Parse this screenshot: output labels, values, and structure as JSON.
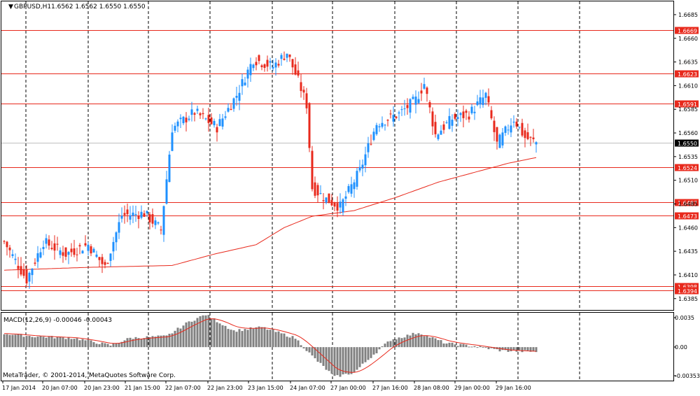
{
  "header": {
    "symbol_label": "GBPUSD,H1",
    "ohlc_label": "1.6562 1.6562 1.6550 1.6550"
  },
  "macd": {
    "label": "MACD(12,26,9) -0.00046 -0.00043",
    "ticks": [
      "0.0035",
      "0.00",
      "-0.00353"
    ],
    "range": [
      -0.0037,
      0.0038
    ]
  },
  "copyright": "MetaTrader, © 2001-2014, MetaQuotes Software Corp.",
  "colors": {
    "bull": "#1E90FF",
    "bear": "#E8291C",
    "level": "#E8291C",
    "ma": "#E8291C",
    "histogram": "#808080",
    "axis": "#000000",
    "grid": "#000000"
  },
  "chart_data": {
    "type": "candlestick",
    "symbol": "GBPUSD",
    "timeframe": "H1",
    "price_range": [
      1.6373,
      1.6699
    ],
    "price_ticks": [
      "1.6685",
      "1.6660",
      "1.6635",
      "1.6610",
      "1.6585",
      "1.6560",
      "1.6535",
      "1.6510",
      "1.6485",
      "1.6460",
      "1.6435",
      "1.6410",
      "1.6385"
    ],
    "time_labels": [
      "17 Jan 2014",
      "20 Jan 07:00",
      "20 Jan 23:00",
      "21 Jan 15:00",
      "22 Jan 07:00",
      "22 Jan 23:00",
      "23 Jan 15:00",
      "24 Jan 07:00",
      "27 Jan 00:00",
      "27 Jan 16:00",
      "28 Jan 08:00",
      "29 Jan 00:00",
      "29 Jan 16:00"
    ],
    "levels": [
      "1.6669",
      "1.6623",
      "1.6591",
      "1.6524",
      "1.6487",
      "1.6473",
      "1.6398",
      "1.6394"
    ],
    "current_price": "1.6550",
    "key_points": [
      {
        "bar": 0,
        "close": 1.6445
      },
      {
        "bar": 8,
        "close": 1.6405
      },
      {
        "bar": 14,
        "close": 1.6445
      },
      {
        "bar": 22,
        "close": 1.6432
      },
      {
        "bar": 30,
        "close": 1.6442
      },
      {
        "bar": 36,
        "close": 1.6418
      },
      {
        "bar": 42,
        "close": 1.6473
      },
      {
        "bar": 50,
        "close": 1.6475
      },
      {
        "bar": 56,
        "close": 1.6458
      },
      {
        "bar": 60,
        "close": 1.6565
      },
      {
        "bar": 68,
        "close": 1.6582
      },
      {
        "bar": 76,
        "close": 1.6566
      },
      {
        "bar": 83,
        "close": 1.66
      },
      {
        "bar": 89,
        "close": 1.6638
      },
      {
        "bar": 96,
        "close": 1.663
      },
      {
        "bar": 101,
        "close": 1.6645
      },
      {
        "bar": 105,
        "close": 1.6615
      },
      {
        "bar": 108,
        "close": 1.659
      },
      {
        "bar": 110,
        "close": 1.6502
      },
      {
        "bar": 115,
        "close": 1.649
      },
      {
        "bar": 120,
        "close": 1.6482
      },
      {
        "bar": 127,
        "close": 1.652
      },
      {
        "bar": 133,
        "close": 1.657
      },
      {
        "bar": 141,
        "close": 1.658
      },
      {
        "bar": 147,
        "close": 1.6595
      },
      {
        "bar": 150,
        "close": 1.6612
      },
      {
        "bar": 154,
        "close": 1.6558
      },
      {
        "bar": 160,
        "close": 1.6575
      },
      {
        "bar": 166,
        "close": 1.658
      },
      {
        "bar": 172,
        "close": 1.66
      },
      {
        "bar": 176,
        "close": 1.6548
      },
      {
        "bar": 182,
        "close": 1.6575
      },
      {
        "bar": 186,
        "close": 1.6555
      },
      {
        "bar": 190,
        "close": 1.655
      }
    ],
    "moving_average": [
      {
        "bar": 0,
        "value": 1.6415
      },
      {
        "bar": 30,
        "value": 1.6418
      },
      {
        "bar": 60,
        "value": 1.642
      },
      {
        "bar": 75,
        "value": 1.6432
      },
      {
        "bar": 90,
        "value": 1.6442
      },
      {
        "bar": 100,
        "value": 1.646
      },
      {
        "bar": 110,
        "value": 1.6472
      },
      {
        "bar": 125,
        "value": 1.6478
      },
      {
        "bar": 140,
        "value": 1.6492
      },
      {
        "bar": 155,
        "value": 1.6508
      },
      {
        "bar": 170,
        "value": 1.652
      },
      {
        "bar": 180,
        "value": 1.6528
      },
      {
        "bar": 190,
        "value": 1.6534
      }
    ],
    "macd_points": [
      {
        "bar": 0,
        "value": 0.0015
      },
      {
        "bar": 10,
        "value": 0.0012
      },
      {
        "bar": 25,
        "value": 0.001
      },
      {
        "bar": 38,
        "value": 0.0002
      },
      {
        "bar": 45,
        "value": 0.001
      },
      {
        "bar": 58,
        "value": 0.0012
      },
      {
        "bar": 66,
        "value": 0.0028
      },
      {
        "bar": 72,
        "value": 0.0036
      },
      {
        "bar": 82,
        "value": 0.0018
      },
      {
        "bar": 92,
        "value": 0.0022
      },
      {
        "bar": 104,
        "value": 0.001
      },
      {
        "bar": 110,
        "value": -0.001
      },
      {
        "bar": 118,
        "value": -0.0033
      },
      {
        "bar": 125,
        "value": -0.0028
      },
      {
        "bar": 132,
        "value": -0.0008
      },
      {
        "bar": 138,
        "value": 0.0008
      },
      {
        "bar": 148,
        "value": 0.0016
      },
      {
        "bar": 158,
        "value": 0.0004
      },
      {
        "bar": 168,
        "value": 0.0001
      },
      {
        "bar": 178,
        "value": -0.0004
      },
      {
        "bar": 190,
        "value": -0.0005
      }
    ],
    "bar_count": 191
  }
}
